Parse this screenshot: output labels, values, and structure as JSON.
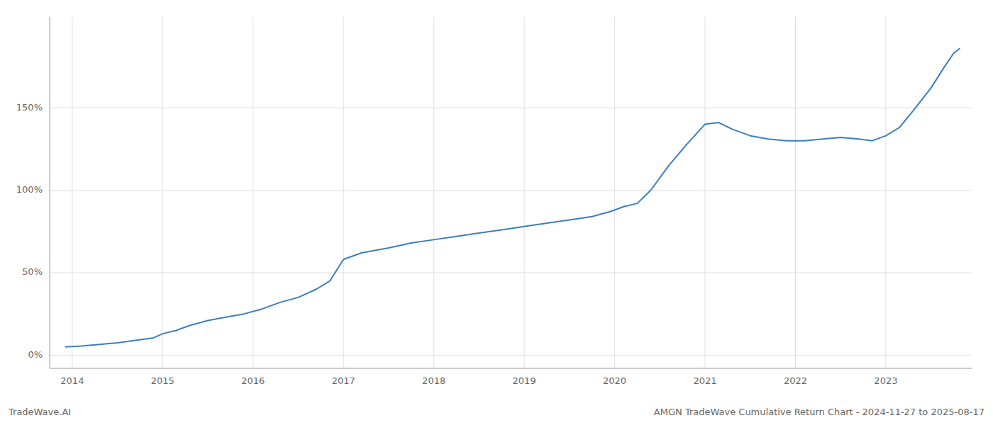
{
  "chart_data": {
    "type": "line",
    "title": "AMGN TradeWave Cumulative Return Chart - 2024-11-27 to 2025-08-17",
    "annotations": [
      "TradeWave.AI"
    ],
    "color": "#3a7ebf",
    "grid": true,
    "x": [
      2013.92,
      2014.1,
      2014.3,
      2014.5,
      2014.7,
      2014.9,
      2015.0,
      2015.15,
      2015.3,
      2015.5,
      2015.7,
      2015.9,
      2016.1,
      2016.3,
      2016.5,
      2016.7,
      2016.85,
      2017.0,
      2017.2,
      2017.5,
      2017.75,
      2018.0,
      2018.25,
      2018.5,
      2018.75,
      2019.0,
      2019.25,
      2019.5,
      2019.75,
      2019.95,
      2020.1,
      2020.25,
      2020.4,
      2020.6,
      2020.8,
      2021.0,
      2021.15,
      2021.3,
      2021.5,
      2021.7,
      2021.9,
      2022.1,
      2022.3,
      2022.5,
      2022.7,
      2022.85,
      2023.0,
      2023.15,
      2023.3,
      2023.5,
      2023.65,
      2023.75,
      2023.82
    ],
    "values": [
      5,
      5.5,
      6.5,
      7.5,
      9,
      10.5,
      13,
      15,
      18,
      21,
      23,
      25,
      28,
      32,
      35,
      40,
      45,
      58,
      62,
      65,
      68,
      70,
      72,
      74,
      76,
      78,
      80,
      82,
      84,
      87,
      90,
      92,
      100,
      115,
      128,
      140,
      141,
      137,
      133,
      131,
      130,
      130,
      131,
      132,
      131,
      130,
      133,
      138,
      148,
      162,
      175,
      183,
      186
    ],
    "xlim": [
      2013.75,
      2023.95
    ],
    "xticks": [
      2014,
      2015,
      2016,
      2017,
      2018,
      2019,
      2020,
      2021,
      2022,
      2023
    ],
    "ylim": [
      -8,
      205
    ],
    "yticks": [
      {
        "value": 0,
        "label": "0%"
      },
      {
        "value": 50,
        "label": "50%"
      },
      {
        "value": 100,
        "label": "100%"
      },
      {
        "value": 150,
        "label": "150%"
      }
    ]
  }
}
